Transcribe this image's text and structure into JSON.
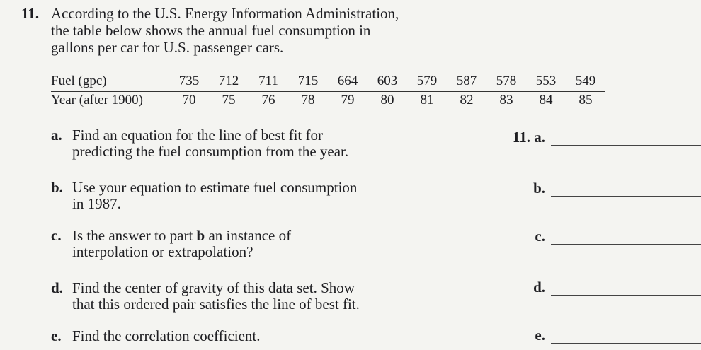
{
  "problem": {
    "number": "11.",
    "intro_lines": [
      "According to the U.S. Energy Information Administration,",
      "the table below shows the annual fuel consumption in",
      "gallons per car for U.S. passenger cars."
    ]
  },
  "table": {
    "row1_label": "Fuel (gpc)",
    "row2_label": "Year (after 1900)",
    "fuel": [
      "735",
      "712",
      "711",
      "715",
      "664",
      "603",
      "579",
      "587",
      "578",
      "553",
      "549"
    ],
    "year": [
      "70",
      "75",
      "76",
      "78",
      "79",
      "80",
      "81",
      "82",
      "83",
      "84",
      "85"
    ]
  },
  "questions": {
    "a": {
      "letter": "a.",
      "line1": "Find an equation for the line of best fit for",
      "line2": "predicting the fuel consumption from the year."
    },
    "b": {
      "letter": "b.",
      "line1": "Use your equation to estimate fuel consumption",
      "line2": "in 1987."
    },
    "c": {
      "letter": "c.",
      "line1_pre": "Is the answer to part ",
      "line1_bold": "b",
      "line1_post": " an instance of",
      "line2": "interpolation or extrapolation?"
    },
    "d": {
      "letter": "d.",
      "line1": "Find the center of gravity of this data set. Show",
      "line2": "that this ordered pair satisfies the line of best fit."
    },
    "e": {
      "letter": "e.",
      "line1": "Find the correlation coefficient."
    }
  },
  "answers": {
    "a": "11. a.",
    "b": "b.",
    "c": "c.",
    "d": "d.",
    "e": "e."
  }
}
